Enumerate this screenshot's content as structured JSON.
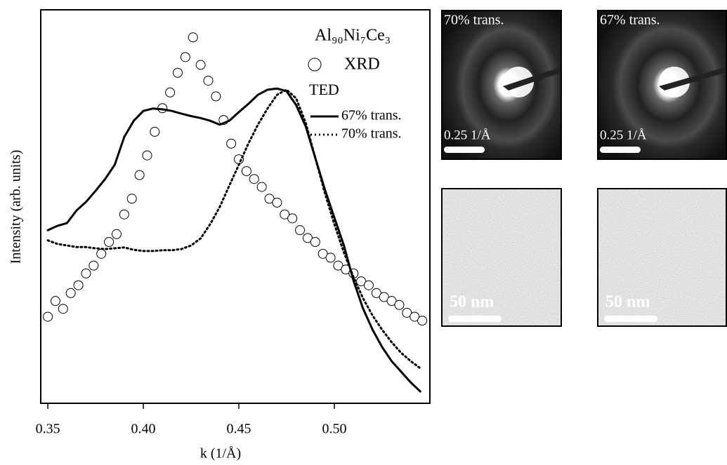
{
  "chart_data": {
    "type": "line",
    "xlabel": "k (1/Å)",
    "ylabel": "Intensity (arb. units)",
    "legend_title": "Al₉₀Ni₇Ce₃",
    "legend_group": "TED",
    "xlim": [
      0.3463,
      0.55
    ],
    "ylim": [
      0,
      1
    ],
    "xticks": [
      0.35,
      {
        "value": 0.4,
        "label": "0.40"
      },
      0.45,
      {
        "value": 0.5,
        "label": "0.50"
      }
    ],
    "series": [
      {
        "name": "XRD",
        "color": "#000000",
        "style": "markers",
        "x": [
          0.35,
          0.354,
          0.358,
          0.362,
          0.366,
          0.37,
          0.374,
          0.378,
          0.382,
          0.386,
          0.39,
          0.394,
          0.398,
          0.402,
          0.406,
          0.41,
          0.414,
          0.418,
          0.422,
          0.426,
          0.43,
          0.434,
          0.438,
          0.442,
          0.446,
          0.45,
          0.454,
          0.458,
          0.462,
          0.466,
          0.47,
          0.474,
          0.478,
          0.482,
          0.486,
          0.49,
          0.494,
          0.498,
          0.502,
          0.506,
          0.51,
          0.514,
          0.518,
          0.522,
          0.526,
          0.53,
          0.534,
          0.538,
          0.542,
          0.546
        ],
        "values": [
          0.22,
          0.26,
          0.24,
          0.28,
          0.3,
          0.33,
          0.35,
          0.38,
          0.41,
          0.43,
          0.48,
          0.52,
          0.58,
          0.63,
          0.69,
          0.75,
          0.79,
          0.84,
          0.88,
          0.93,
          0.86,
          0.82,
          0.78,
          0.72,
          0.66,
          0.62,
          0.59,
          0.57,
          0.55,
          0.52,
          0.51,
          0.48,
          0.47,
          0.44,
          0.42,
          0.41,
          0.38,
          0.37,
          0.35,
          0.34,
          0.33,
          0.31,
          0.3,
          0.28,
          0.27,
          0.26,
          0.25,
          0.23,
          0.22,
          0.21
        ]
      },
      {
        "name": "67% trans.",
        "color": "#000000",
        "style": "solid",
        "x": [
          0.35,
          0.355,
          0.36,
          0.365,
          0.37,
          0.375,
          0.38,
          0.385,
          0.39,
          0.395,
          0.4,
          0.405,
          0.41,
          0.415,
          0.42,
          0.425,
          0.43,
          0.435,
          0.44,
          0.445,
          0.45,
          0.455,
          0.46,
          0.465,
          0.47,
          0.475,
          0.48,
          0.485,
          0.49,
          0.495,
          0.5,
          0.505,
          0.51,
          0.515,
          0.52,
          0.525,
          0.53,
          0.535,
          0.54,
          0.545
        ],
        "values": [
          0.44,
          0.451,
          0.458,
          0.49,
          0.512,
          0.54,
          0.57,
          0.606,
          0.677,
          0.718,
          0.743,
          0.749,
          0.747,
          0.743,
          0.736,
          0.73,
          0.725,
          0.718,
          0.708,
          0.718,
          0.74,
          0.761,
          0.784,
          0.797,
          0.8,
          0.793,
          0.758,
          0.704,
          0.624,
          0.544,
          0.472,
          0.401,
          0.312,
          0.241,
          0.187,
          0.143,
          0.107,
          0.08,
          0.053,
          0.03
        ]
      },
      {
        "name": "70% trans.",
        "color": "#000000",
        "style": "dotted",
        "x": [
          0.35,
          0.355,
          0.36,
          0.365,
          0.37,
          0.375,
          0.38,
          0.385,
          0.39,
          0.395,
          0.4,
          0.405,
          0.41,
          0.415,
          0.42,
          0.425,
          0.43,
          0.435,
          0.44,
          0.445,
          0.45,
          0.455,
          0.46,
          0.465,
          0.47,
          0.475,
          0.48,
          0.485,
          0.49,
          0.495,
          0.5,
          0.505,
          0.51,
          0.515,
          0.52,
          0.525,
          0.53,
          0.535,
          0.54,
          0.545
        ],
        "values": [
          0.414,
          0.405,
          0.401,
          0.397,
          0.397,
          0.394,
          0.392,
          0.394,
          0.396,
          0.39,
          0.387,
          0.387,
          0.389,
          0.389,
          0.392,
          0.401,
          0.419,
          0.455,
          0.499,
          0.553,
          0.606,
          0.66,
          0.708,
          0.749,
          0.784,
          0.797,
          0.775,
          0.713,
          0.624,
          0.535,
          0.455,
          0.383,
          0.321,
          0.267,
          0.223,
          0.187,
          0.155,
          0.128,
          0.107,
          0.089
        ]
      }
    ]
  },
  "images": [
    {
      "kind": "diffraction",
      "label": "70% trans.",
      "scale": "0.25 1/Å"
    },
    {
      "kind": "diffraction",
      "label": "67% trans.",
      "scale": "0.25 1/Å"
    },
    {
      "kind": "micrograph",
      "scale": "50 nm"
    },
    {
      "kind": "micrograph",
      "scale": "50 nm"
    }
  ]
}
